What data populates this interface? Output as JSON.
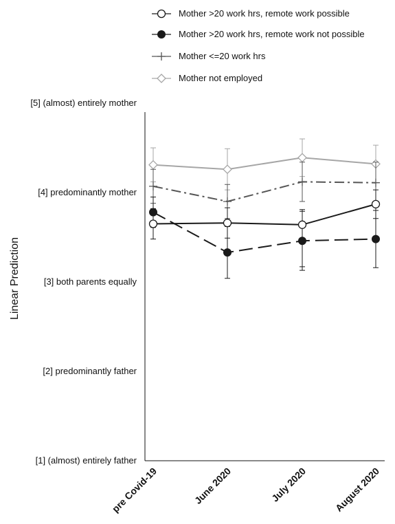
{
  "chart_data": {
    "type": "line",
    "ylabel": "Linear Prediction",
    "xlabel": "",
    "ylim": [
      1,
      5
    ],
    "categories": [
      "pre Covid-19",
      "June 2020",
      "July 2020",
      "August 2020"
    ],
    "yticks": [
      {
        "value": 5,
        "label": "[5] (almost) entirely mother"
      },
      {
        "value": 4,
        "label": "[4] predominantly mother"
      },
      {
        "value": 3,
        "label": "[3] both parents equally"
      },
      {
        "value": 2,
        "label": "[2] predominantly father"
      },
      {
        "value": 1,
        "label": "[1] (almost) entirely father"
      }
    ],
    "grid": false,
    "legend_position": "top",
    "series": [
      {
        "name": "Mother >20 work hrs, remote work possible",
        "key": "remote-possible",
        "values": [
          3.65,
          3.66,
          3.64,
          3.87
        ],
        "ci_low": [
          3.48,
          3.49,
          3.17,
          3.71
        ],
        "ci_high": [
          3.82,
          3.83,
          3.81,
          4.03
        ],
        "color": "#1a1a1a",
        "marker": "circle-open",
        "dash": "solid"
      },
      {
        "name": "Mother >20 work hrs, remote work not possible",
        "key": "remote-not-possible",
        "values": [
          3.78,
          3.33,
          3.46,
          3.48
        ],
        "ci_low": [
          3.61,
          3.04,
          3.13,
          3.16
        ],
        "ci_high": [
          3.95,
          3.62,
          3.79,
          3.8
        ],
        "color": "#1a1a1a",
        "marker": "circle-filled",
        "dash": "longdash"
      },
      {
        "name": "Mother <=20 work hrs",
        "key": "part-time",
        "values": [
          4.07,
          3.9,
          4.12,
          4.11
        ],
        "ci_low": [
          3.88,
          3.71,
          3.9,
          3.88
        ],
        "ci_high": [
          4.26,
          4.09,
          4.34,
          4.34
        ],
        "color": "#555555",
        "marker": "plus",
        "dash": "dashdot"
      },
      {
        "name": "Mother not employed",
        "key": "not-employed",
        "values": [
          4.31,
          4.26,
          4.39,
          4.32
        ],
        "ci_low": [
          4.12,
          4.03,
          4.18,
          4.11
        ],
        "ci_high": [
          4.5,
          4.49,
          4.6,
          4.53
        ],
        "color": "#a6a6a6",
        "marker": "diamond-open",
        "dash": "solid"
      }
    ]
  }
}
